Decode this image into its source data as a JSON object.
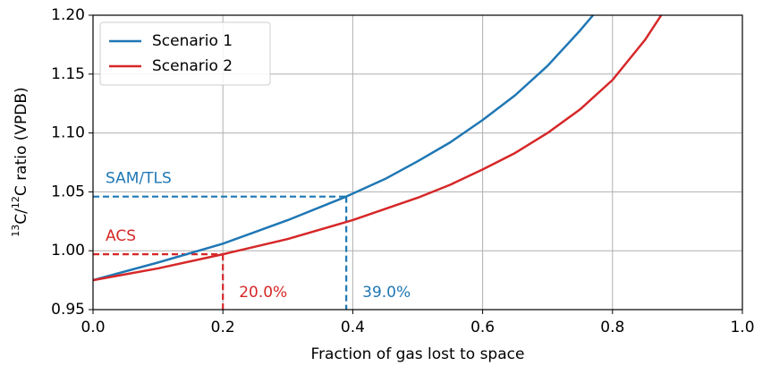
{
  "chart_data": {
    "type": "line",
    "xlabel": "Fraction of gas lost to space",
    "ylabel_parts": [
      "13",
      "C/",
      "12",
      "C ratio (VPDB)"
    ],
    "xlim": [
      0,
      1
    ],
    "ylim": [
      0.95,
      1.2
    ],
    "xticks": [
      {
        "value": 0,
        "label": "0.0"
      },
      0.2,
      0.4,
      0.6,
      0.8,
      {
        "value": 1,
        "label": "1.0"
      }
    ],
    "yticks": [
      0.95,
      {
        "value": 1,
        "label": "1.00"
      },
      1.05,
      {
        "value": 1.1,
        "label": "1.10"
      },
      1.15,
      {
        "value": 1.2,
        "label": "1.20"
      }
    ],
    "grid": true,
    "legend": "upper left",
    "series": [
      {
        "name": "Scenario 1",
        "color": "#1f77b4",
        "x": [
          0,
          0.1,
          0.2,
          0.3,
          0.39,
          0.45,
          0.5,
          0.55,
          0.6,
          0.65,
          0.7,
          0.75,
          0.77
        ],
        "values": [
          0.975,
          0.99,
          1.006,
          1.026,
          1.046,
          1.061,
          1.076,
          1.092,
          1.111,
          1.132,
          1.157,
          1.187,
          1.2
        ]
      },
      {
        "name": "Scenario 2",
        "color": "#d62728",
        "x": [
          0,
          0.1,
          0.2,
          0.3,
          0.4,
          0.5,
          0.55,
          0.6,
          0.65,
          0.7,
          0.75,
          0.8,
          0.85,
          0.875
        ],
        "values": [
          0.975,
          0.985,
          0.997,
          1.01,
          1.026,
          1.045,
          1.056,
          1.069,
          1.083,
          1.1,
          1.12,
          1.145,
          1.179,
          1.2
        ]
      }
    ],
    "annotations": [
      {
        "label": "SAM/TLS",
        "x": 0.39,
        "y": 1.046,
        "x_label": "39.0%",
        "color": "#1f77b4"
      },
      {
        "label": "ACS",
        "x": 0.2,
        "y": 0.997,
        "x_label": "20.0%",
        "color": "#d62728"
      }
    ]
  }
}
